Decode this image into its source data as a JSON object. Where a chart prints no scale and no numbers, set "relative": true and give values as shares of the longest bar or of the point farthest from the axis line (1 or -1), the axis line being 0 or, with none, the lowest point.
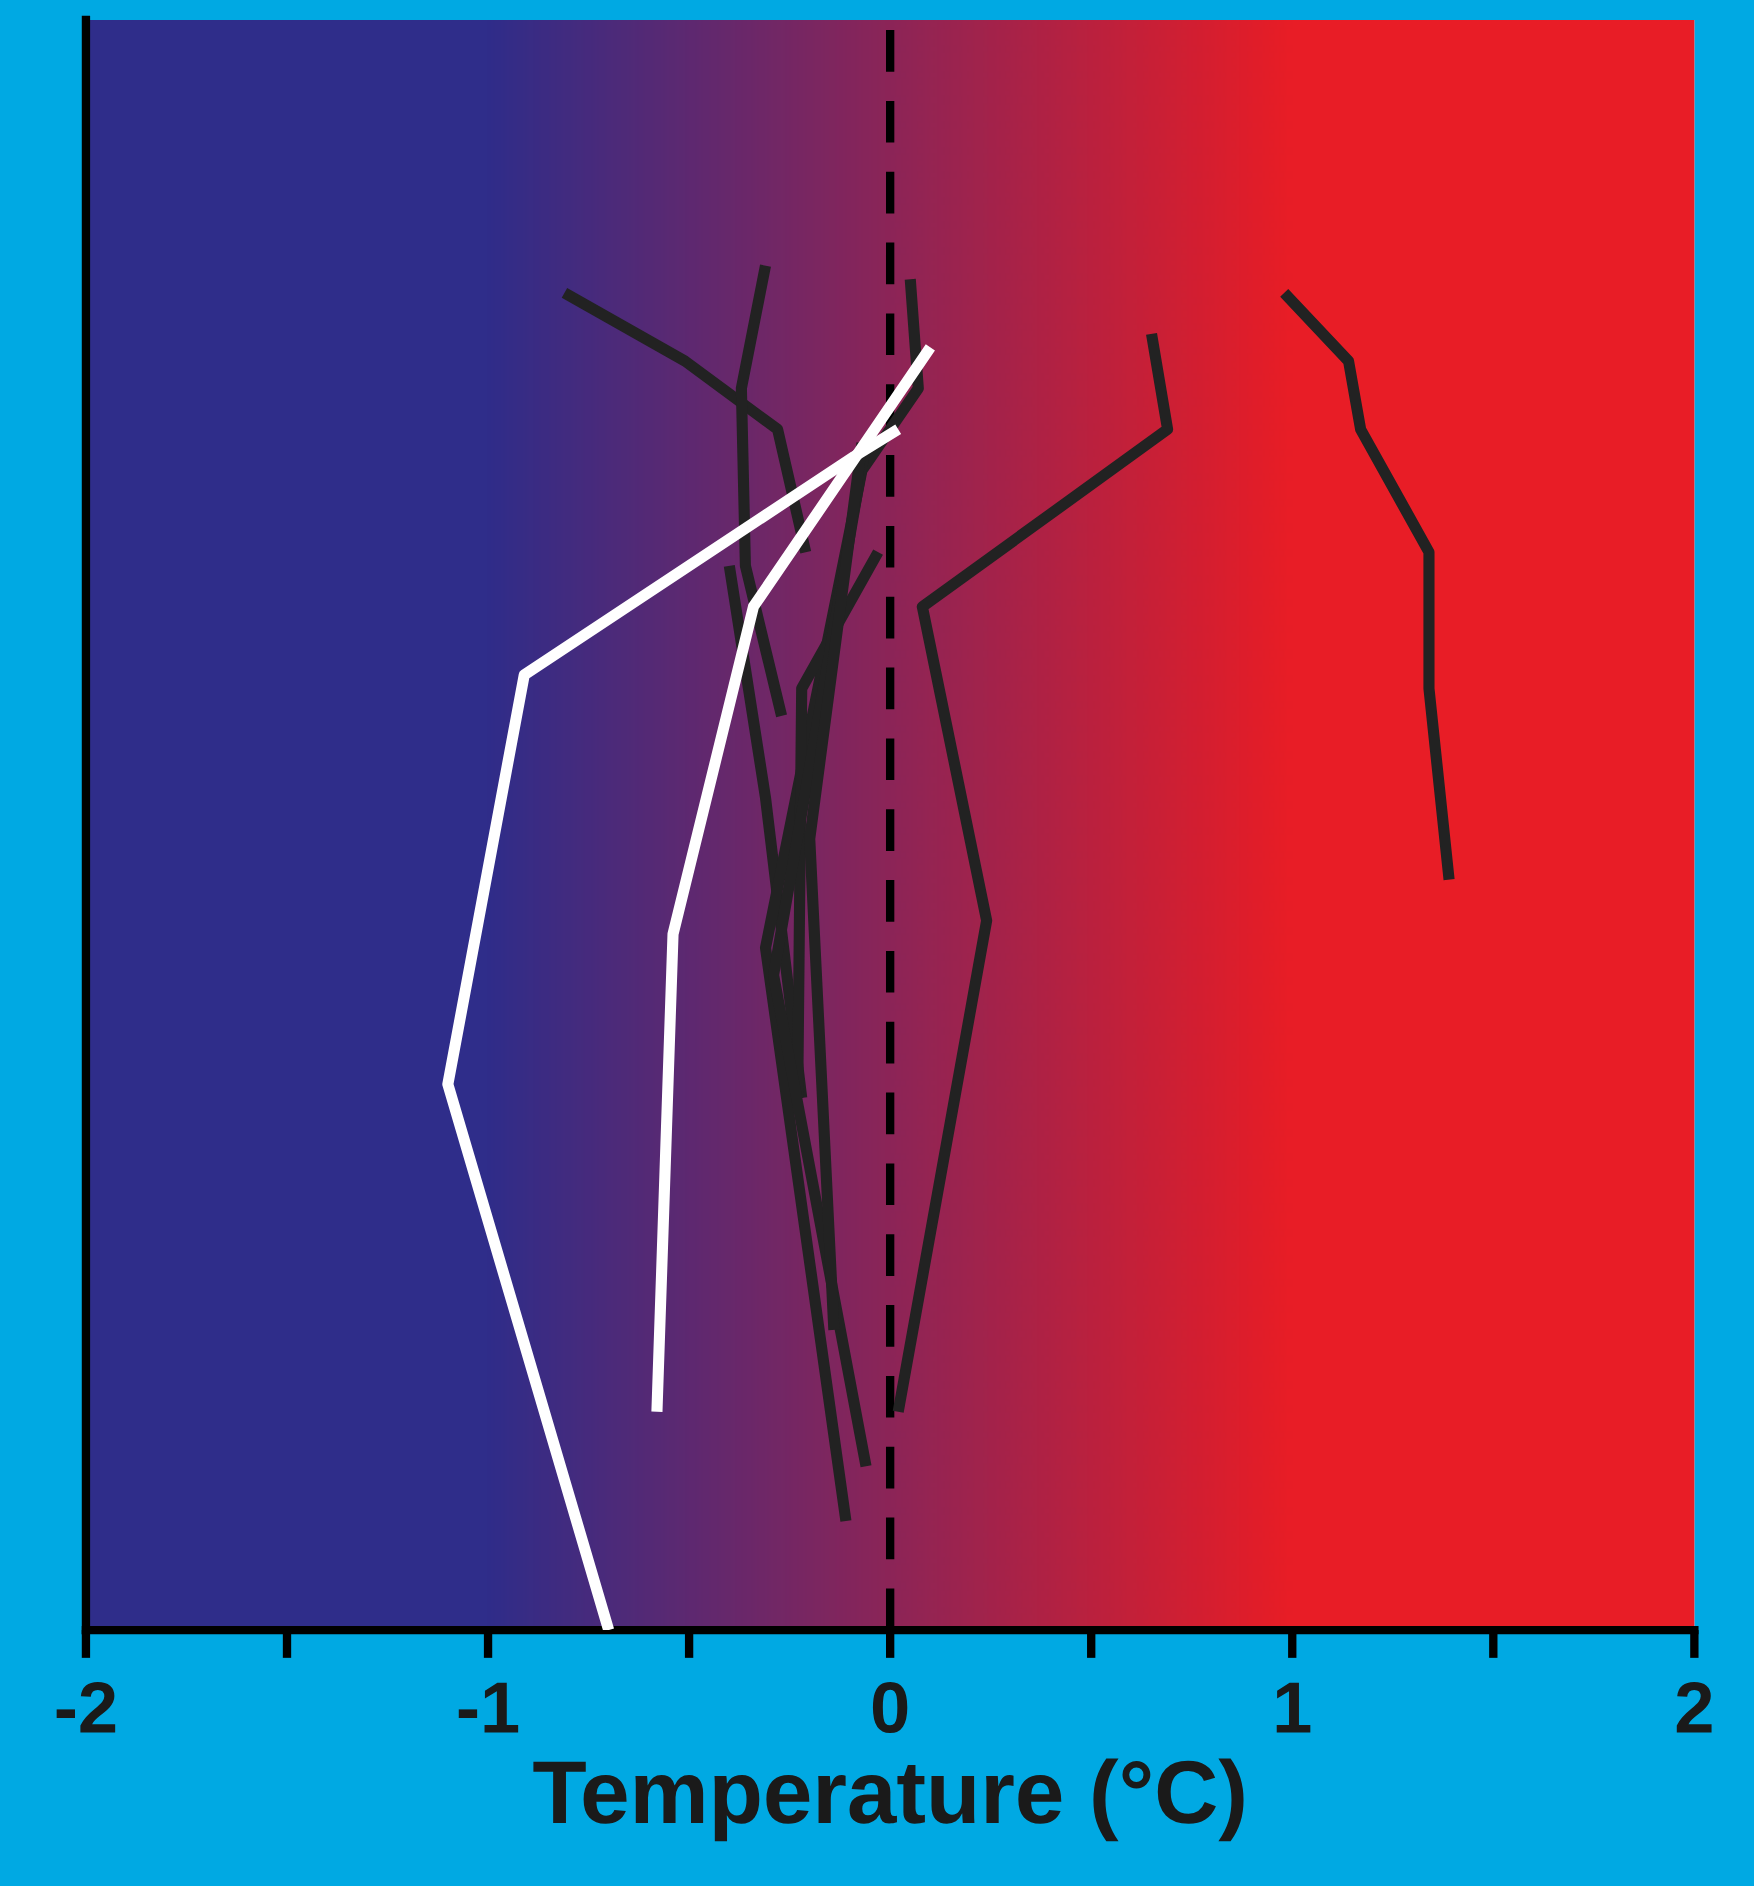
{
  "chart_data": {
    "type": "line",
    "xlabel": "Temperature (°C)",
    "relative": true,
    "xlim": [
      -2,
      2
    ],
    "xticks": [
      -2,
      {
        "value": -1.5,
        "label": null
      },
      -1,
      {
        "value": -0.5,
        "label": null
      },
      0,
      {
        "value": 0.5,
        "label": null
      },
      1,
      {
        "value": 1.5,
        "label": null
      },
      2
    ],
    "grid": false,
    "legend": false,
    "marker": "none",
    "line_style": "solid",
    "ref_lines": [
      {
        "axis": "x",
        "value": 0,
        "label": null,
        "color": "#000000",
        "line_style": "dashed"
      }
    ],
    "series": [
      {
        "color": "#222222",
        "x": [
          0.98,
          1.14,
          1.17,
          1.34,
          1.34,
          1.39
        ],
        "values": [
          0.98,
          0.93,
          0.88,
          0.79,
          0.69,
          0.55
        ]
      },
      {
        "color": "#222222",
        "x": [
          0.65,
          0.69,
          0.08,
          0.24,
          0.02
        ],
        "values": [
          0.95,
          0.88,
          0.75,
          0.52,
          0.16
        ]
      },
      {
        "color": "#222222",
        "x": [
          -0.81,
          -0.51,
          -0.28,
          -0.21
        ],
        "values": [
          0.98,
          0.93,
          0.88,
          0.79
        ]
      },
      {
        "color": "#222222",
        "x": [
          -0.31,
          -0.37,
          -0.36,
          -0.27
        ],
        "values": [
          1.0,
          0.91,
          0.78,
          0.67
        ]
      },
      {
        "color": "#222222",
        "x": [
          -0.4,
          -0.31,
          -0.22
        ],
        "values": [
          0.78,
          0.61,
          0.39
        ]
      },
      {
        "color": "#222222",
        "x": [
          0.05,
          0.07,
          -0.07,
          -0.31,
          -0.11
        ],
        "values": [
          0.99,
          0.91,
          0.85,
          0.5,
          0.08
        ]
      },
      {
        "color": "#222222",
        "x": [
          -0.03,
          -0.22,
          -0.23
        ],
        "values": [
          0.79,
          0.69,
          0.39
        ]
      },
      {
        "color": "#222222",
        "x": [
          -0.06,
          -0.29,
          -0.06
        ],
        "values": [
          0.87,
          0.48,
          0.12
        ]
      },
      {
        "color": "#222222",
        "x": [
          -0.07,
          -0.2,
          -0.14
        ],
        "values": [
          0.87,
          0.58,
          0.22
        ]
      },
      {
        "color": "#ffffff",
        "x": [
          0.02,
          -0.09,
          -0.91,
          -1.1,
          -0.7
        ],
        "values": [
          0.88,
          0.86,
          0.7,
          0.4,
          0
        ]
      },
      {
        "color": "#ffffff",
        "x": [
          0.1,
          -0.34,
          -0.54,
          -0.58
        ],
        "values": [
          0.94,
          0.75,
          0.51,
          0.16
        ]
      }
    ]
  }
}
